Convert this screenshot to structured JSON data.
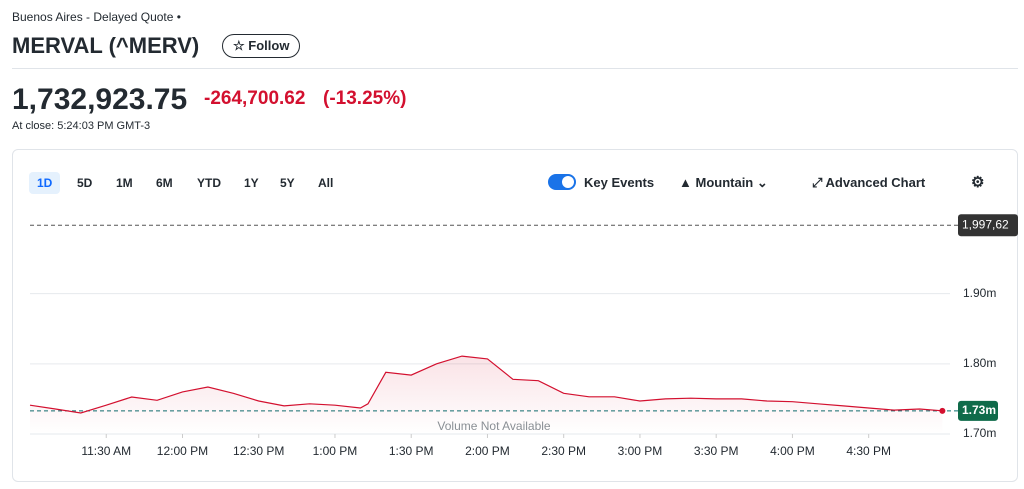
{
  "header": {
    "exchange": "Buenos Aires - Delayed Quote •",
    "title": "MERVAL (^MERV)",
    "follow": "Follow"
  },
  "quote": {
    "price": "1,732,923.75",
    "change": "-264,700.62",
    "change_percent": "(-13.25%)",
    "close_time": "At close: 5:24:03 PM GMT-3"
  },
  "toolbar": {
    "ranges": [
      "1D",
      "5D",
      "1M",
      "6M",
      "YTD",
      "1Y",
      "5Y",
      "All"
    ],
    "key_events": "Key Events",
    "chart_type": "Mountain",
    "advanced": "Advanced Chart"
  },
  "chart_data": {
    "type": "area",
    "color": "#d3102f",
    "x": [
      660,
      670,
      680,
      690,
      700,
      710,
      720,
      730,
      740,
      750,
      760,
      770,
      780,
      790,
      793,
      800,
      810,
      820,
      830,
      840,
      850,
      860,
      870,
      880,
      890,
      900,
      910,
      920,
      930,
      940,
      950,
      960,
      970,
      980,
      990,
      1000,
      1010,
      1019
    ],
    "values": [
      1741000,
      1735600,
      1730000,
      1741000,
      1752700,
      1748000,
      1760000,
      1767000,
      1758000,
      1747000,
      1740000,
      1743000,
      1741000,
      1737000,
      1743000,
      1788000,
      1784000,
      1800000,
      1811000,
      1807000,
      1778000,
      1776000,
      1758000,
      1753000,
      1753000,
      1747000,
      1750000,
      1751000,
      1750000,
      1750000,
      1747000,
      1746000,
      1743000,
      1740000,
      1737000,
      1734000,
      1735600,
      1733000
    ],
    "xlim": [
      660,
      1022
    ],
    "xticks": [
      {
        "value": 690,
        "label": "11:30 AM"
      },
      {
        "value": 720,
        "label": "12:00 PM"
      },
      {
        "value": 750,
        "label": "12:30 PM"
      },
      {
        "value": 780,
        "label": "1:00 PM"
      },
      {
        "value": 810,
        "label": "1:30 PM"
      },
      {
        "value": 840,
        "label": "2:00 PM"
      },
      {
        "value": 870,
        "label": "2:30 PM"
      },
      {
        "value": 900,
        "label": "3:00 PM"
      },
      {
        "value": 930,
        "label": "3:30 PM"
      },
      {
        "value": 960,
        "label": "4:00 PM"
      },
      {
        "value": 990,
        "label": "4:30 PM"
      }
    ],
    "ylim": [
      1700000,
      2015000
    ],
    "yticks": [
      {
        "value": 1700000,
        "label": "1.70m"
      },
      {
        "value": 1800000,
        "label": "1.80m"
      },
      {
        "value": 1900000,
        "label": "1.90m"
      }
    ],
    "grid": true,
    "previous_close": {
      "value": 1997620,
      "label": "1,997,62"
    },
    "last_price": {
      "value": 1732924,
      "label": "1.73m"
    },
    "note": "Volume Not Available"
  }
}
